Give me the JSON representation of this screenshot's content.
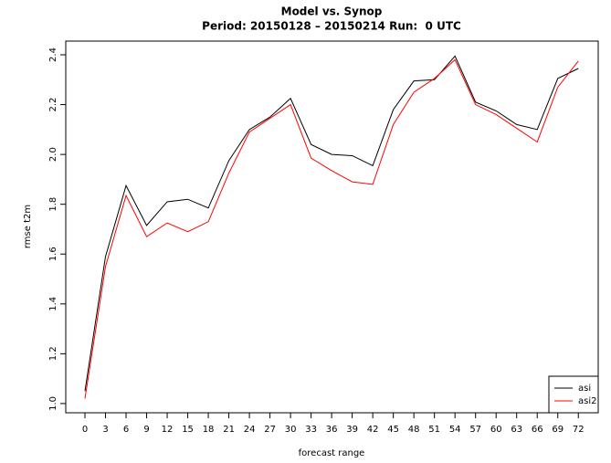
{
  "chart_data": {
    "type": "line",
    "title": "Model vs. Synop",
    "subtitle": "Period: 20150128 – 20150214 Run:  0 UTC",
    "xlabel": "forecast range",
    "ylabel": "rmse t2m",
    "x": [
      0,
      3,
      6,
      9,
      12,
      15,
      18,
      21,
      24,
      27,
      30,
      33,
      36,
      39,
      42,
      45,
      48,
      51,
      54,
      57,
      60,
      63,
      66,
      69,
      72
    ],
    "series": [
      {
        "name": "asi",
        "color": "#000000",
        "values": [
          1.05,
          1.59,
          1.875,
          1.715,
          1.81,
          1.82,
          1.785,
          1.975,
          2.1,
          2.15,
          2.225,
          2.04,
          2.0,
          1.995,
          1.955,
          2.18,
          2.295,
          2.3,
          2.395,
          2.21,
          2.175,
          2.12,
          2.1,
          2.305,
          2.345
        ]
      },
      {
        "name": "asi2",
        "color": "#ff0000",
        "values": [
          1.02,
          1.55,
          1.835,
          1.67,
          1.725,
          1.69,
          1.73,
          1.925,
          2.09,
          2.145,
          2.2,
          1.985,
          1.935,
          1.89,
          1.88,
          2.12,
          2.25,
          2.305,
          2.38,
          2.2,
          2.16,
          2.105,
          2.05,
          2.27,
          2.375
        ]
      }
    ],
    "xlim": [
      -2.8,
      74.9
    ],
    "ylim": [
      0.963,
      2.455
    ],
    "xticks": [
      0,
      3,
      6,
      9,
      12,
      15,
      18,
      21,
      24,
      27,
      30,
      33,
      36,
      39,
      42,
      45,
      48,
      51,
      54,
      57,
      60,
      63,
      66,
      69,
      72
    ],
    "yticks": [
      {
        "value": 1,
        "label": "1.0"
      },
      1.2,
      1.4,
      1.6,
      1.8,
      {
        "value": 2,
        "label": "2.0"
      },
      2.2,
      2.4
    ],
    "legend": "bottomright"
  }
}
